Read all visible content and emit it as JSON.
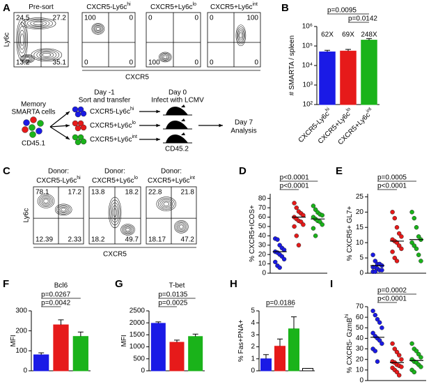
{
  "panel_labels": [
    "A",
    "B",
    "C",
    "D",
    "E",
    "F",
    "G",
    "H",
    "I"
  ],
  "flow_A": {
    "y_label": "Ly6c",
    "x_label": "CXCR5",
    "plots": [
      {
        "title": "Pre-sort",
        "color": "#000000",
        "quadrants": [
          24.5,
          27.2,
          13.2,
          35.1
        ]
      },
      {
        "title": "CXCR5-Ly6c",
        "sup": "hi",
        "color": "#1a1ae6",
        "quadrants": [
          100,
          0,
          0,
          0
        ]
      },
      {
        "title": "CXCR5+Ly6c",
        "sup": "lo",
        "color": "#e61a1a",
        "quadrants": [
          0,
          0,
          100,
          0
        ]
      },
      {
        "title": "CXCR5+Ly6c",
        "sup": "int",
        "color": "#1ab31a",
        "quadrants": [
          0,
          100,
          0,
          0
        ]
      }
    ]
  },
  "diagram": {
    "source": [
      "Memory",
      "SMARTA cells"
    ],
    "source_marker": "CD45.1",
    "step1": [
      "Day -1",
      "Sort and transfer"
    ],
    "populations": [
      {
        "text": "CXCR5-Ly6c",
        "sup": "hi",
        "color": "#1a1ae6"
      },
      {
        "text": "CXCR5+Ly6c",
        "sup": "lo",
        "color": "#e61a1a"
      },
      {
        "text": "CXCR5+Ly6c",
        "sup": "int",
        "color": "#1ab31a"
      }
    ],
    "step2": [
      "Day 0",
      "Infect with LCMV"
    ],
    "host_marker": "CD45.2",
    "step3": [
      "Day 7",
      "Analysis"
    ]
  },
  "flow_C": {
    "y_label": "Ly6c",
    "x_label": "CXCR5",
    "plots": [
      {
        "donor": "Donor:",
        "title": "CXCR5-Ly6c",
        "sup": "hi",
        "color": "#1a1ae6",
        "quadrants": [
          78.1,
          17.2,
          12.39,
          2.33
        ]
      },
      {
        "donor": "Donor:",
        "title": "CXCR5+Ly6c",
        "sup": "lo",
        "color": "#e61a1a",
        "quadrants": [
          13.8,
          18.2,
          18.2,
          49.7
        ]
      },
      {
        "donor": "Donor:",
        "title": "CXCR5+Ly6c",
        "sup": "int",
        "color": "#1ab31a",
        "quadrants": [
          22.8,
          21.8,
          18.17,
          47.2
        ]
      }
    ]
  },
  "chart_data": [
    {
      "type": "bar",
      "y_label": "# SMARTA / spleen",
      "log_scale": true,
      "categories": [
        "CXCR5-Ly6c",
        "CXCR5+Ly6c",
        "CXCR5+Ly6c"
      ],
      "category_sups": [
        "hi",
        "lo",
        "int"
      ],
      "values": [
        50000,
        55000,
        200000
      ],
      "errors": [
        10000,
        12000,
        40000
      ],
      "colors": [
        "#1a1ae6",
        "#e61a1a",
        "#1ab31a"
      ],
      "annotations": [
        "62X",
        "69X",
        "248X"
      ],
      "ylim": [
        100,
        1000000
      ],
      "yticks": [
        {
          "value": 100,
          "label": "10²"
        },
        {
          "value": 1000,
          "label": "10³"
        },
        {
          "value": 10000,
          "label": "10⁴"
        },
        {
          "value": 100000,
          "label": "10⁵"
        },
        {
          "value": 1000000,
          "label": "10⁶"
        }
      ],
      "comparisons": [
        {
          "from": 0,
          "to": 2,
          "label": "p=0.0095"
        },
        {
          "from": 1,
          "to": 2,
          "label": "p=0.0142"
        }
      ]
    },
    {
      "type": "dot",
      "y_label": "% CXCR5+ICOS+",
      "colors": [
        "#1a1ae6",
        "#e61a1a",
        "#1ab31a"
      ],
      "groups": [
        [
          37,
          36,
          30,
          27,
          25,
          23,
          22,
          20,
          18,
          15,
          12,
          8,
          6
        ],
        [
          75,
          70,
          66,
          64,
          62,
          60,
          58,
          56,
          55,
          52,
          50,
          40,
          30
        ],
        [
          72,
          68,
          65,
          63,
          62,
          60,
          58,
          56,
          55,
          52,
          48,
          40
        ]
      ],
      "means": [
        23,
        60,
        58
      ],
      "ylim": [
        0,
        85
      ],
      "yticks": [
        0,
        10,
        20,
        30,
        40,
        50,
        60,
        70,
        80
      ],
      "comparisons": [
        {
          "from": 0,
          "to": 2,
          "label": "p<0.0001"
        },
        {
          "from": 0,
          "to": 1,
          "label": "p<0.0001"
        }
      ]
    },
    {
      "type": "dot",
      "y_label": "% CXCR5+ GL7+",
      "colors": [
        "#1a1ae6",
        "#e61a1a",
        "#1ab31a"
      ],
      "groups": [
        [
          6,
          4,
          3,
          3,
          2.5,
          2,
          2,
          1.5,
          1,
          1,
          0.5,
          0.5
        ],
        [
          20,
          18,
          15,
          13,
          12,
          11,
          10.5,
          10,
          9,
          8,
          7,
          5,
          4
        ],
        [
          20,
          18,
          15,
          12,
          11,
          10,
          9,
          8,
          6,
          4
        ]
      ],
      "means": [
        2.5,
        10.5,
        11
      ],
      "ylim": [
        0,
        26
      ],
      "yticks": [
        0,
        5,
        10,
        15,
        20,
        25
      ],
      "comparisons": [
        {
          "from": 0,
          "to": 2,
          "label": "p=0.0005"
        },
        {
          "from": 0,
          "to": 1,
          "label": "p<0.0001"
        }
      ]
    },
    {
      "type": "bar",
      "title": "Bcl6",
      "y_label": "MFI",
      "values": [
        80,
        230,
        172
      ],
      "errors": [
        10,
        25,
        22
      ],
      "colors": [
        "#1a1ae6",
        "#e61a1a",
        "#1ab31a"
      ],
      "ylim": [
        0,
        300
      ],
      "yticks": [
        0,
        100,
        200,
        300
      ],
      "comparisons": [
        {
          "from": 0,
          "to": 2,
          "label": "p=0.0267"
        },
        {
          "from": 0,
          "to": 1,
          "label": "p=0.0042"
        }
      ]
    },
    {
      "type": "bar",
      "title": "T-bet",
      "y_label": "MFI",
      "values": [
        1980,
        1190,
        1430
      ],
      "errors": [
        60,
        90,
        100
      ],
      "colors": [
        "#1a1ae6",
        "#e61a1a",
        "#1ab31a"
      ],
      "ylim": [
        0,
        2500
      ],
      "yticks": [
        0,
        500,
        1000,
        1500,
        2000,
        2500
      ],
      "comparisons": [
        {
          "from": 0,
          "to": 2,
          "label": "p=0.0135"
        },
        {
          "from": 0,
          "to": 1,
          "label": "p=0.0025"
        }
      ]
    },
    {
      "type": "bar",
      "y_label": "% Fas+PNA+",
      "values": [
        1.0,
        2.05,
        3.5,
        0.2
      ],
      "errors": [
        0.35,
        0.6,
        1.0,
        0
      ],
      "colors": [
        "#1a1ae6",
        "#e61a1a",
        "#1ab31a",
        "#ffffff"
      ],
      "ylim": [
        0,
        5
      ],
      "yticks": [
        0,
        1,
        2,
        3,
        4,
        5
      ],
      "comparisons": [
        {
          "from": 0,
          "to": 2,
          "label": "p=0.0186"
        }
      ]
    },
    {
      "type": "dot",
      "y_label": "% CXCR5- GzmB",
      "y_label_sup": "hi",
      "colors": [
        "#1a1ae6",
        "#e61a1a",
        "#1ab31a"
      ],
      "groups": [
        [
          66,
          62,
          58,
          55,
          50,
          45,
          42,
          40,
          38,
          35,
          30,
          28,
          18
        ],
        [
          35,
          30,
          27,
          24,
          20,
          18,
          17,
          15,
          14,
          13,
          12,
          10,
          8,
          5
        ],
        [
          35,
          30,
          28,
          25,
          22,
          20,
          18,
          17,
          15,
          13,
          10,
          8
        ]
      ],
      "means": [
        41,
        17,
        19
      ],
      "ylim": [
        0,
        70
      ],
      "yticks": [
        0,
        10,
        20,
        30,
        40,
        50,
        60,
        70
      ],
      "comparisons": [
        {
          "from": 0,
          "to": 2,
          "label": "p=0.0002"
        },
        {
          "from": 0,
          "to": 1,
          "label": "p<0.0001"
        }
      ]
    }
  ]
}
